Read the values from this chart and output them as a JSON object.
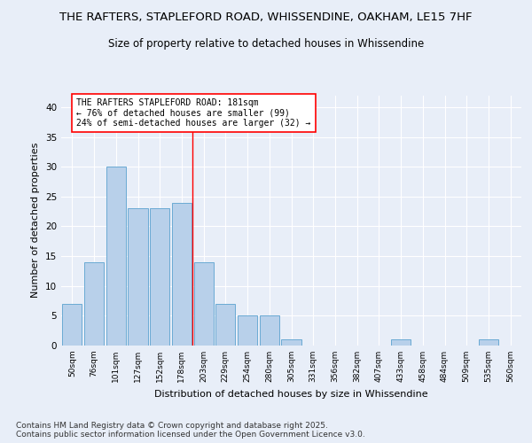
{
  "title1": "THE RAFTERS, STAPLEFORD ROAD, WHISSENDINE, OAKHAM, LE15 7HF",
  "title2": "Size of property relative to detached houses in Whissendine",
  "xlabel": "Distribution of detached houses by size in Whissendine",
  "ylabel": "Number of detached properties",
  "categories": [
    "50sqm",
    "76sqm",
    "101sqm",
    "127sqm",
    "152sqm",
    "178sqm",
    "203sqm",
    "229sqm",
    "254sqm",
    "280sqm",
    "305sqm",
    "331sqm",
    "356sqm",
    "382sqm",
    "407sqm",
    "433sqm",
    "458sqm",
    "484sqm",
    "509sqm",
    "535sqm",
    "560sqm"
  ],
  "values": [
    7,
    14,
    30,
    23,
    23,
    24,
    14,
    7,
    5,
    5,
    1,
    0,
    0,
    0,
    0,
    1,
    0,
    0,
    0,
    1,
    0
  ],
  "bar_color": "#b8d0ea",
  "bar_edge_color": "#6aaad4",
  "red_line_x": 5.5,
  "annotation_text": "THE RAFTERS STAPLEFORD ROAD: 181sqm\n← 76% of detached houses are smaller (99)\n24% of semi-detached houses are larger (32) →",
  "background_color": "#e8eef8",
  "plot_background_color": "#e8eef8",
  "grid_color": "#ffffff",
  "ylim": [
    0,
    42
  ],
  "yticks": [
    0,
    5,
    10,
    15,
    20,
    25,
    30,
    35,
    40
  ],
  "footer": "Contains HM Land Registry data © Crown copyright and database right 2025.\nContains public sector information licensed under the Open Government Licence v3.0.",
  "title1_fontsize": 9.5,
  "title2_fontsize": 8.5,
  "annotation_fontsize": 7,
  "ylabel_fontsize": 8,
  "xlabel_fontsize": 8,
  "footer_fontsize": 6.5
}
